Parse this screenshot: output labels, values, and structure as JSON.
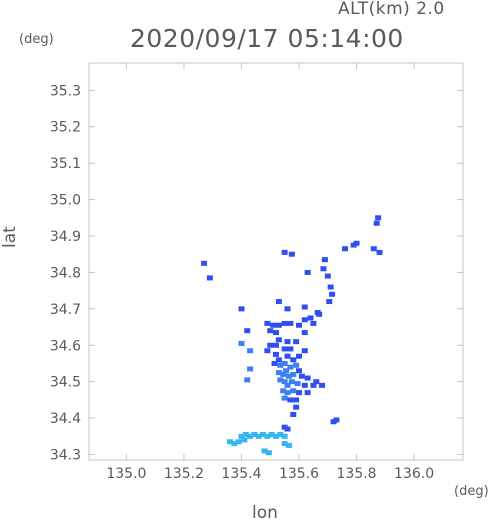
{
  "chart_data": {
    "type": "scatter",
    "title": "2020/09/17 05:14:00",
    "subtitle": "ALT(km) 2.0",
    "xlabel": "lon",
    "ylabel": "lat",
    "x_unit": "(deg)",
    "y_unit": "(deg)",
    "xlim": [
      134.87,
      136.17
    ],
    "ylim": [
      34.285,
      35.375
    ],
    "x_ticks": [
      "135.0",
      "135.2",
      "135.4",
      "135.6",
      "135.8",
      "136.0"
    ],
    "y_ticks": [
      "34.3",
      "34.4",
      "34.5",
      "34.6",
      "34.7",
      "34.8",
      "34.9",
      "35.0",
      "35.1",
      "35.2",
      "35.3"
    ],
    "grid": false,
    "colors": {
      "frame": "#c4c4c4",
      "text": "#5a5a5a",
      "echo_blue": "#2f4ff0",
      "echo_mid": "#3d7ff5",
      "echo_cyan": "#35b6f0"
    },
    "points": [
      {
        "x": 135.87,
        "y": 34.935
      },
      {
        "x": 135.875,
        "y": 34.95
      },
      {
        "x": 135.8,
        "y": 34.88
      },
      {
        "x": 135.79,
        "y": 34.875
      },
      {
        "x": 135.76,
        "y": 34.865
      },
      {
        "x": 135.86,
        "y": 34.865
      },
      {
        "x": 135.88,
        "y": 34.855
      },
      {
        "x": 135.27,
        "y": 34.825
      },
      {
        "x": 135.29,
        "y": 34.785
      },
      {
        "x": 135.55,
        "y": 34.855
      },
      {
        "x": 135.575,
        "y": 34.85
      },
      {
        "x": 135.63,
        "y": 34.8
      },
      {
        "x": 135.69,
        "y": 34.835
      },
      {
        "x": 135.685,
        "y": 34.81
      },
      {
        "x": 135.7,
        "y": 34.79
      },
      {
        "x": 135.71,
        "y": 34.76
      },
      {
        "x": 135.715,
        "y": 34.74
      },
      {
        "x": 135.705,
        "y": 34.72
      },
      {
        "x": 135.53,
        "y": 34.72
      },
      {
        "x": 135.56,
        "y": 34.7
      },
      {
        "x": 135.62,
        "y": 34.705
      },
      {
        "x": 135.665,
        "y": 34.69
      },
      {
        "x": 135.67,
        "y": 34.685
      },
      {
        "x": 135.62,
        "y": 34.67
      },
      {
        "x": 135.64,
        "y": 34.675
      },
      {
        "x": 135.49,
        "y": 34.66
      },
      {
        "x": 135.51,
        "y": 34.655
      },
      {
        "x": 135.53,
        "y": 34.655
      },
      {
        "x": 135.55,
        "y": 34.66
      },
      {
        "x": 135.57,
        "y": 34.66
      },
      {
        "x": 135.6,
        "y": 34.655
      },
      {
        "x": 135.65,
        "y": 34.66
      },
      {
        "x": 135.42,
        "y": 34.64
      },
      {
        "x": 135.5,
        "y": 34.64
      },
      {
        "x": 135.52,
        "y": 34.635
      },
      {
        "x": 135.62,
        "y": 34.635
      },
      {
        "x": 135.53,
        "y": 34.615
      },
      {
        "x": 135.56,
        "y": 34.61
      },
      {
        "x": 135.59,
        "y": 34.61
      },
      {
        "x": 135.5,
        "y": 34.6
      },
      {
        "x": 135.52,
        "y": 34.6
      },
      {
        "x": 135.43,
        "y": 34.585
      },
      {
        "x": 135.49,
        "y": 34.585
      },
      {
        "x": 135.55,
        "y": 34.59
      },
      {
        "x": 135.57,
        "y": 34.59
      },
      {
        "x": 135.62,
        "y": 34.585
      },
      {
        "x": 135.52,
        "y": 34.575
      },
      {
        "x": 135.53,
        "y": 34.56
      },
      {
        "x": 135.56,
        "y": 34.57
      },
      {
        "x": 135.58,
        "y": 34.56
      },
      {
        "x": 135.6,
        "y": 34.57
      },
      {
        "x": 135.515,
        "y": 34.55
      },
      {
        "x": 135.535,
        "y": 34.545
      },
      {
        "x": 135.55,
        "y": 34.55
      },
      {
        "x": 135.57,
        "y": 34.54
      },
      {
        "x": 135.59,
        "y": 34.545
      },
      {
        "x": 135.6,
        "y": 34.53
      },
      {
        "x": 135.53,
        "y": 34.525
      },
      {
        "x": 135.545,
        "y": 34.52
      },
      {
        "x": 135.555,
        "y": 34.53
      },
      {
        "x": 135.565,
        "y": 34.515
      },
      {
        "x": 135.58,
        "y": 34.52
      },
      {
        "x": 135.61,
        "y": 34.515
      },
      {
        "x": 135.63,
        "y": 34.51
      },
      {
        "x": 135.535,
        "y": 34.505
      },
      {
        "x": 135.55,
        "y": 34.5
      },
      {
        "x": 135.56,
        "y": 34.49
      },
      {
        "x": 135.575,
        "y": 34.5
      },
      {
        "x": 135.595,
        "y": 34.495
      },
      {
        "x": 135.62,
        "y": 34.49
      },
      {
        "x": 135.65,
        "y": 34.49
      },
      {
        "x": 135.66,
        "y": 34.5
      },
      {
        "x": 135.68,
        "y": 34.49
      },
      {
        "x": 135.545,
        "y": 34.475
      },
      {
        "x": 135.56,
        "y": 34.47
      },
      {
        "x": 135.58,
        "y": 34.475
      },
      {
        "x": 135.6,
        "y": 34.47
      },
      {
        "x": 135.63,
        "y": 34.47
      },
      {
        "x": 135.55,
        "y": 34.455
      },
      {
        "x": 135.57,
        "y": 34.45
      },
      {
        "x": 135.59,
        "y": 34.45
      },
      {
        "x": 135.42,
        "y": 34.505
      },
      {
        "x": 135.43,
        "y": 34.535
      },
      {
        "x": 135.4,
        "y": 34.605
      },
      {
        "x": 135.4,
        "y": 34.7
      },
      {
        "x": 135.59,
        "y": 34.43
      },
      {
        "x": 135.58,
        "y": 34.41
      },
      {
        "x": 135.72,
        "y": 34.39
      },
      {
        "x": 135.73,
        "y": 34.395
      },
      {
        "x": 135.55,
        "y": 34.375
      },
      {
        "x": 135.56,
        "y": 34.37
      },
      {
        "x": 135.4,
        "y": 34.35
      },
      {
        "x": 135.415,
        "y": 34.355
      },
      {
        "x": 135.43,
        "y": 34.35
      },
      {
        "x": 135.445,
        "y": 34.355
      },
      {
        "x": 135.46,
        "y": 34.35
      },
      {
        "x": 135.475,
        "y": 34.355
      },
      {
        "x": 135.49,
        "y": 34.35
      },
      {
        "x": 135.505,
        "y": 34.355
      },
      {
        "x": 135.52,
        "y": 34.35
      },
      {
        "x": 135.535,
        "y": 34.355
      },
      {
        "x": 135.55,
        "y": 34.35
      },
      {
        "x": 135.36,
        "y": 34.335
      },
      {
        "x": 135.375,
        "y": 34.33
      },
      {
        "x": 135.39,
        "y": 34.335
      },
      {
        "x": 135.41,
        "y": 34.34
      },
      {
        "x": 135.55,
        "y": 34.33
      },
      {
        "x": 135.565,
        "y": 34.325
      },
      {
        "x": 135.48,
        "y": 34.31
      },
      {
        "x": 135.495,
        "y": 34.305
      }
    ]
  }
}
